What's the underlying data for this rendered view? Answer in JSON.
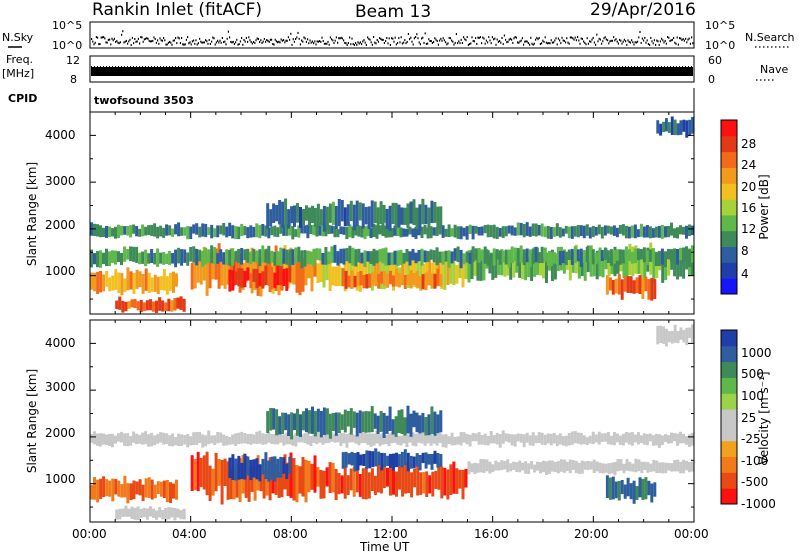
{
  "header": {
    "station": "Rankin Inlet (fitACF)",
    "beam": "Beam 13",
    "date": "29/Apr/2016"
  },
  "top_panels": {
    "nsky_label": "N.Sky",
    "nsky_ticks": [
      "10^5",
      "10^0"
    ],
    "nsearch_label": "N.Search",
    "nsearch_ticks": [
      "10^5",
      "10^0"
    ],
    "freq_label_1": "Freq.",
    "freq_label_2": "[MHz]",
    "freq_ticks": [
      "12",
      "8"
    ],
    "nave_label": "Nave",
    "nave_ticks": [
      "60",
      "0"
    ],
    "cpid_label": "CPID",
    "cpid_value": "twofsound 3503"
  },
  "colors": {
    "power": [
      "#1515ff",
      "#1f3ea8",
      "#2e5ea0",
      "#3e8a58",
      "#5fb84a",
      "#a8d23a",
      "#f2c021",
      "#f29a1e",
      "#f26a1a",
      "#e23a16",
      "#ff1010"
    ],
    "velocity": [
      "#1f3ea8",
      "#2e5ea0",
      "#3e8a58",
      "#5fb84a",
      "#9ad24a",
      "#c8c8c8",
      "#c8c8c8",
      "#f2a01e",
      "#f27a1a",
      "#e84a16",
      "#ff1010"
    ],
    "ground_scatter": "#c8c8c8",
    "accent_line": "#000000"
  },
  "chart_data": [
    {
      "type": "heatmap",
      "panel": "power",
      "ylabel": "Slant Range [km]",
      "yticks": [
        "1000",
        "2000",
        "3000",
        "4000"
      ],
      "ylim": [
        180,
        4500
      ],
      "colorbar_label": "Power [dB]",
      "colorbar_ticks": [
        "4",
        "8",
        "12",
        "16",
        "20",
        "24",
        "28"
      ],
      "colorbar_range": [
        0,
        30
      ],
      "bands": [
        {
          "t0": 0.0,
          "t1": 24.0,
          "r0": 1800,
          "r1": 2100,
          "v": 9
        },
        {
          "t0": 0.0,
          "t1": 3.5,
          "r0": 600,
          "r1": 1100,
          "v": 20
        },
        {
          "t0": 1.0,
          "t1": 3.8,
          "r0": 200,
          "r1": 500,
          "v": 24
        },
        {
          "t0": 4.0,
          "t1": 9.0,
          "r0": 600,
          "r1": 1600,
          "v": 22
        },
        {
          "t0": 5.5,
          "t1": 8.0,
          "r0": 700,
          "r1": 1200,
          "v": 27
        },
        {
          "t0": 9.0,
          "t1": 15.0,
          "r0": 700,
          "r1": 1400,
          "v": 17
        },
        {
          "t0": 10.0,
          "t1": 14.0,
          "r0": 700,
          "r1": 1100,
          "v": 22
        },
        {
          "t0": 15.0,
          "t1": 24.0,
          "r0": 900,
          "r1": 1600,
          "v": 12
        },
        {
          "t0": 20.5,
          "t1": 22.5,
          "r0": 500,
          "r1": 1000,
          "v": 24
        },
        {
          "t0": 7.0,
          "t1": 14.0,
          "r0": 2000,
          "r1": 2600,
          "v": 8
        },
        {
          "t0": 0.0,
          "t1": 24.0,
          "r0": 1200,
          "r1": 1600,
          "v": 10
        },
        {
          "t0": 22.5,
          "t1": 24.0,
          "r0": 4000,
          "r1": 4400,
          "v": 7
        }
      ]
    },
    {
      "type": "heatmap",
      "panel": "velocity",
      "ylabel": "Slant Range [km]",
      "yticks": [
        "1000",
        "2000",
        "3000",
        "4000"
      ],
      "ylim": [
        180,
        4500
      ],
      "xlabel": "Time UT",
      "xticks": [
        "00:00",
        "04:00",
        "08:00",
        "12:00",
        "16:00",
        "20:00",
        "00:00"
      ],
      "xlim": [
        0,
        24
      ],
      "colorbar_label": "Velocity [m s⁻¹]",
      "colorbar_ticks": [
        "1000",
        "500",
        "100",
        "25",
        "-25",
        "-100",
        "-500",
        "-1000"
      ],
      "colorbar_range": [
        -1000,
        1000
      ],
      "bands": [
        {
          "t0": 0.0,
          "t1": 24.0,
          "r0": 1800,
          "r1": 2100,
          "v": -1
        },
        {
          "t0": 0.0,
          "t1": 3.5,
          "r0": 600,
          "r1": 1100,
          "v": -120
        },
        {
          "t0": 1.0,
          "t1": 3.8,
          "r0": 200,
          "r1": 500,
          "v": -1
        },
        {
          "t0": 4.0,
          "t1": 9.0,
          "r0": 600,
          "r1": 1600,
          "v": -200
        },
        {
          "t0": 5.5,
          "t1": 8.0,
          "r0": 1000,
          "r1": 1600,
          "v": 500
        },
        {
          "t0": 9.0,
          "t1": 15.0,
          "r0": 700,
          "r1": 1400,
          "v": -300
        },
        {
          "t0": 10.0,
          "t1": 14.0,
          "r0": 1300,
          "r1": 1700,
          "v": 400
        },
        {
          "t0": 15.0,
          "t1": 24.0,
          "r0": 1200,
          "r1": 1500,
          "v": -1
        },
        {
          "t0": 20.5,
          "t1": 22.5,
          "r0": 600,
          "r1": 1100,
          "v": 150
        },
        {
          "t0": 7.0,
          "t1": 14.0,
          "r0": 2000,
          "r1": 2600,
          "v": 120
        },
        {
          "t0": 22.5,
          "t1": 24.0,
          "r0": 4000,
          "r1": 4400,
          "v": -1
        }
      ]
    }
  ]
}
